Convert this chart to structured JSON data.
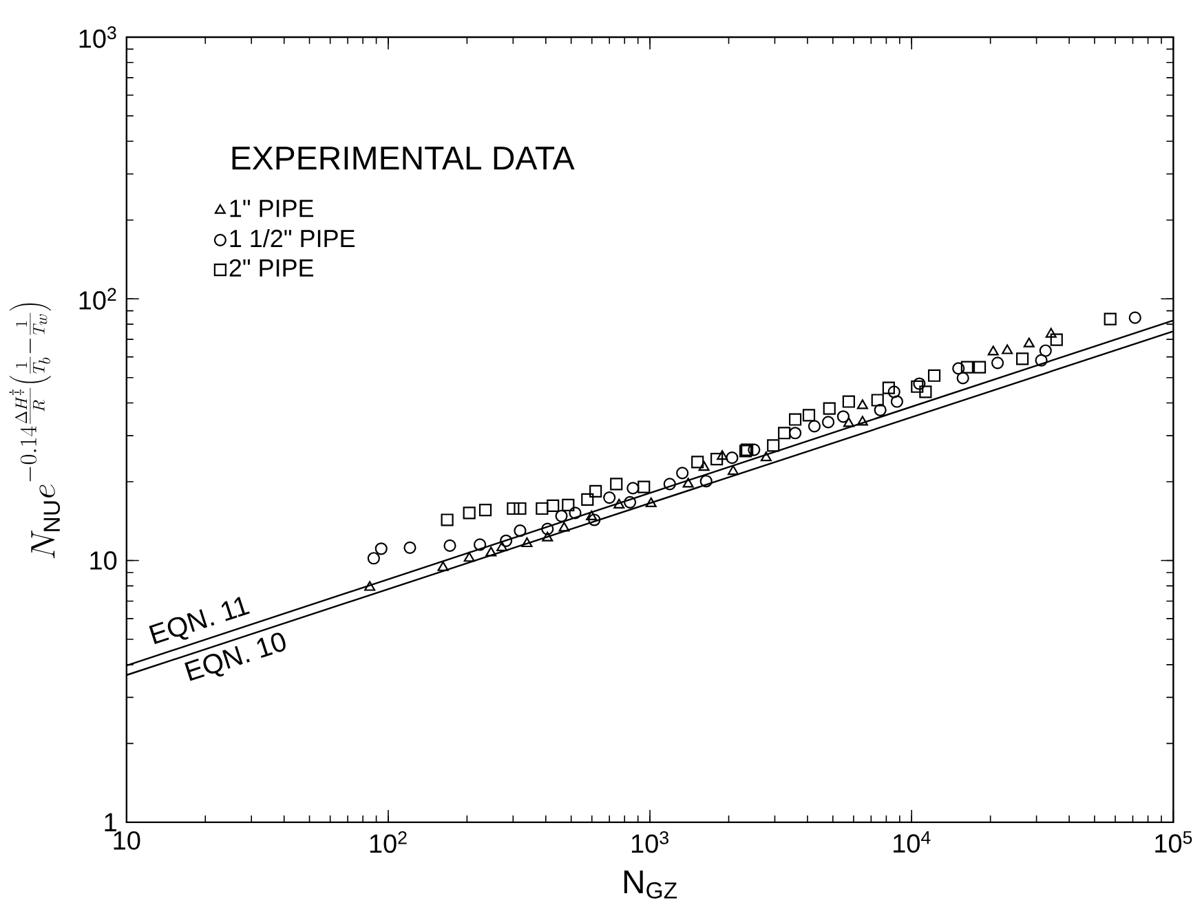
{
  "chart_data": {
    "type": "scatter",
    "xlabel": "N$_{GZ}$",
    "ylabel": "N_{\\mathrm{NU}}e^{-0.14\\frac{\\Delta H^{\\ddagger}}{R}\\left(\\frac{1}{T_b}-\\frac{1}{T_w}\\right)}",
    "legend_title": "EXPERIMENTAL DATA",
    "annotations": [
      {
        "text": "EQN. 11",
        "x": 20,
        "y": 5.0
      },
      {
        "text": "EQN. 10",
        "x": 25,
        "y": 4.9
      }
    ],
    "log": "xy",
    "legend": "top left",
    "xlim": [
      10,
      100000
    ],
    "ylim": [
      1,
      1000
    ],
    "xticks": [
      10,
      {
        "value": 100,
        "label": "10$^{2}$"
      },
      {
        "value": 1000,
        "label": "10$^{3}$"
      },
      {
        "value": 10000,
        "label": "10$^{4}$"
      },
      {
        "value": 100000,
        "label": "10$^{5}$"
      }
    ],
    "yticks": [
      1,
      10,
      {
        "value": 100,
        "label": "10$^{2}$"
      },
      {
        "value": 1000,
        "label": "10$^{3}$"
      }
    ],
    "series": [
      {
        "name": "1\" PIPE",
        "color": "#000000",
        "marker": "triangle",
        "x": [
          85,
          162,
          204,
          247,
          272,
          339,
          406,
          470,
          598,
          762,
          1010,
          1400,
          1610,
          1890,
          2080,
          2780,
          5750,
          6490,
          6490,
          20500,
          23200,
          28100,
          34100
        ],
        "values": [
          7.9,
          9.4,
          10.2,
          10.7,
          11.2,
          11.6,
          12.2,
          13.3,
          14.7,
          16.3,
          16.5,
          19.6,
          22.7,
          25.0,
          21.9,
          24.7,
          33.4,
          33.8,
          39.1,
          62.7,
          63.4,
          67.3,
          73.3
        ]
      },
      {
        "name": "1 1/2\" PIPE",
        "color": "#000000",
        "marker": "circle",
        "x": [
          88,
          94,
          121,
          172,
          224,
          282,
          319,
          406,
          459,
          518,
          613,
          700,
          839,
          861,
          1190,
          1330,
          1640,
          2060,
          2500,
          3590,
          4250,
          4800,
          5480,
          7590,
          8790,
          8570,
          10700,
          15100,
          15700,
          21300,
          31300,
          32500,
          71400
        ],
        "values": [
          10.2,
          11.1,
          11.2,
          11.4,
          11.5,
          11.9,
          13.0,
          13.2,
          14.8,
          15.2,
          14.3,
          17.4,
          16.7,
          18.9,
          19.6,
          21.6,
          20.1,
          24.7,
          26.5,
          30.7,
          32.6,
          33.8,
          35.5,
          37.6,
          40.5,
          44.1,
          47.4,
          54.2,
          49.8,
          56.9,
          58.2,
          63.4,
          84.7
        ]
      },
      {
        "name": "2\" PIPE",
        "color": "#000000",
        "marker": "square",
        "x": [
          168,
          204,
          235,
          300,
          319,
          387,
          426,
          487,
          577,
          620,
          744,
          948,
          1520,
          1800,
          2320,
          2350,
          2960,
          3260,
          3590,
          4050,
          4850,
          5750,
          7410,
          8170,
          10500,
          11300,
          12200,
          16300,
          18200,
          26500,
          35800,
          57400
        ],
        "values": [
          14.3,
          15.2,
          15.6,
          15.8,
          15.8,
          15.8,
          16.2,
          16.3,
          17.1,
          18.4,
          19.6,
          19.1,
          23.8,
          24.4,
          26.2,
          26.5,
          27.5,
          30.7,
          34.6,
          35.9,
          38.1,
          40.5,
          41.0,
          45.7,
          46.2,
          44.1,
          50.9,
          54.8,
          54.8,
          59.0,
          69.8,
          83.7
        ]
      },
      {
        "type": "line",
        "color": "#000000",
        "marker": "none",
        "x": [
          10,
          100000
        ],
        "values": [
          3.97,
          82.7
        ]
      },
      {
        "type": "line",
        "color": "#000000",
        "marker": "none",
        "x": [
          10,
          100000
        ],
        "values": [
          3.65,
          75.2
        ]
      }
    ]
  }
}
